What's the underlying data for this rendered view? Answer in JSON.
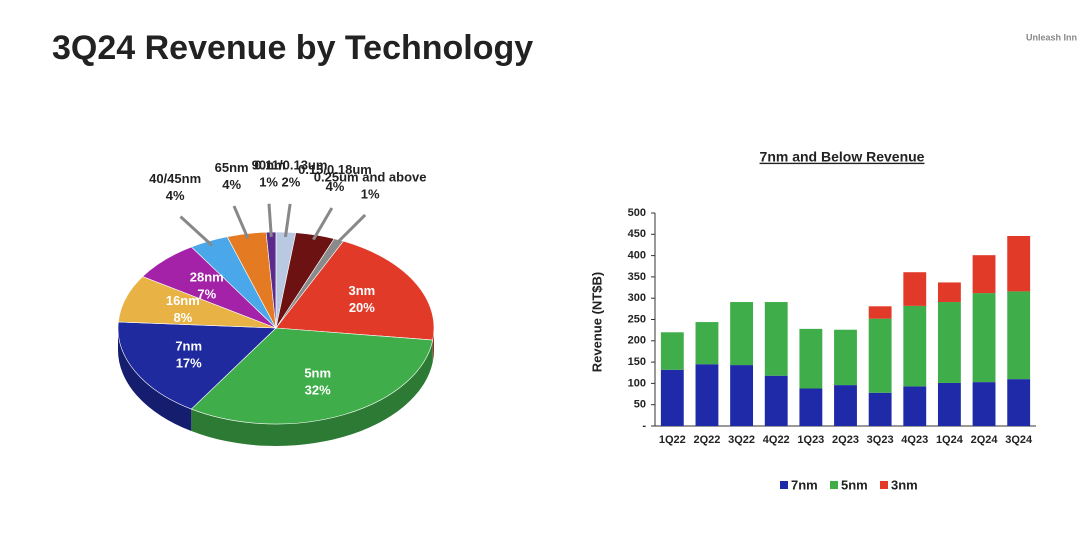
{
  "title": "3Q24 Revenue by Technology",
  "logo_text": "Unleash Inn",
  "chart_data": [
    {
      "type": "pie",
      "categories": [
        "3nm",
        "5nm",
        "7nm",
        "16nm",
        "28nm",
        "40/45nm",
        "65nm",
        "90nm",
        "0.11/0.13um",
        "0.15/0.18um",
        "0.25um and above"
      ],
      "values": [
        20,
        32,
        17,
        8,
        7,
        4,
        4,
        1,
        2,
        4,
        1
      ],
      "value_labels": [
        "20%",
        "32%",
        "17%",
        "8%",
        "7%",
        "4%",
        "4%",
        "1%",
        "2%",
        "4%",
        "1%"
      ],
      "colors": [
        "#e23a28",
        "#3fae4a",
        "#1e2a9e",
        "#e8b244",
        "#a322a8",
        "#4aa8ea",
        "#e47a22",
        "#5a2a8c",
        "#b9c9e2",
        "#6c1212",
        "#8a8a8a"
      ]
    },
    {
      "type": "stacked_bar",
      "title": "7nm and Below Revenue",
      "y_label": "Revenue (NT$B)",
      "categories": [
        "1Q22",
        "2Q22",
        "3Q22",
        "4Q22",
        "1Q23",
        "2Q23",
        "3Q23",
        "4Q23",
        "1Q24",
        "2Q24",
        "3Q24"
      ],
      "series": [
        {
          "name": "7nm",
          "color": "#1e2aa8",
          "values": [
            132,
            145,
            143,
            118,
            88,
            96,
            78,
            93,
            101,
            103,
            110
          ]
        },
        {
          "name": "5nm",
          "color": "#3fae4a",
          "values": [
            88,
            99,
            148,
            173,
            140,
            130,
            174,
            189,
            190,
            209,
            206
          ]
        },
        {
          "name": "3nm",
          "color": "#e23a28",
          "values": [
            0,
            0,
            0,
            0,
            0,
            0,
            29,
            79,
            46,
            89,
            130
          ]
        }
      ],
      "ylim": [
        0,
        500
      ],
      "yticks": [
        {
          "value": 0,
          "label": "-"
        },
        50,
        100,
        150,
        200,
        250,
        300,
        350,
        400,
        450,
        500
      ],
      "legend": "bottom"
    }
  ]
}
